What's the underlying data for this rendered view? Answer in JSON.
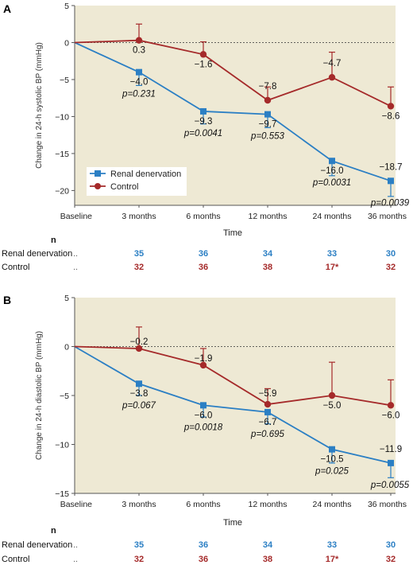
{
  "chart_data": [
    {
      "type": "line",
      "panel": "A",
      "ylabel": "Change in 24-h systolic BP (mmHg)",
      "xlabel": "Time",
      "ylim": [
        -22,
        5
      ],
      "yticks": [
        5,
        0,
        -5,
        -10,
        -15,
        -20
      ],
      "categories": [
        "Baseline",
        "3 months",
        "6 months",
        "12 months",
        "24 months",
        "36 months"
      ],
      "series": [
        {
          "name": "Renal denervation",
          "color": "#2b7fc4",
          "marker": "square",
          "values": [
            0,
            -4.0,
            -9.3,
            -9.7,
            -16.0,
            -18.7
          ],
          "err_low": [
            null,
            -5.8,
            -11.0,
            -11.5,
            -18.0,
            -20.8
          ],
          "value_labels": [
            "",
            "−4.0",
            "−9.3",
            "−9.7",
            "−16.0",
            "−18.7"
          ],
          "p_labels": [
            "",
            "p=0.231",
            "p=0.0041",
            "p=0.553",
            "p=0.0031",
            "p=0.0039"
          ]
        },
        {
          "name": "Control",
          "color": "#a52a2a",
          "marker": "circle",
          "values": [
            0,
            0.3,
            -1.6,
            -7.8,
            -4.7,
            -8.6
          ],
          "err_high": [
            null,
            2.5,
            0.1,
            -6.0,
            -1.3,
            -6.0
          ],
          "value_labels": [
            "",
            "0.3",
            "−1.6",
            "−7.8",
            "−4.7",
            "−8.6"
          ]
        }
      ],
      "n_table": {
        "header": "n",
        "rows": [
          {
            "label": "Renal denervation",
            "dots": "..",
            "color": "#2b7fc4",
            "values": [
              "35",
              "36",
              "34",
              "33",
              "30"
            ]
          },
          {
            "label": "Control",
            "dots": "..",
            "color": "#a52a2a",
            "values": [
              "32",
              "36",
              "38",
              "17*",
              "32"
            ]
          }
        ]
      }
    },
    {
      "type": "line",
      "panel": "B",
      "ylabel": "Change in 24-h diastolic BP (mmHg)",
      "xlabel": "Time",
      "ylim": [
        -15,
        5
      ],
      "yticks": [
        5,
        0,
        -5,
        -10,
        -15
      ],
      "categories": [
        "Baseline",
        "3 months",
        "6 months",
        "12 months",
        "24 months",
        "36 months"
      ],
      "series": [
        {
          "name": "Renal denervation",
          "color": "#2b7fc4",
          "marker": "square",
          "values": [
            0,
            -3.8,
            -6.0,
            -6.7,
            -10.5,
            -11.9
          ],
          "err_low": [
            null,
            -5.0,
            -7.2,
            -7.9,
            -11.9,
            -13.4
          ],
          "value_labels": [
            "",
            "−3.8",
            "−6.0",
            "−6.7",
            "−10.5",
            "−11.9"
          ],
          "p_labels": [
            "",
            "p=0.067",
            "p=0.0018",
            "p=0.695",
            "p=0.025",
            "p=0.0055"
          ]
        },
        {
          "name": "Control",
          "color": "#a52a2a",
          "marker": "circle",
          "values": [
            0,
            -0.2,
            -1.9,
            -5.9,
            -5.0,
            -6.0
          ],
          "err_high": [
            null,
            2.0,
            -0.2,
            -4.3,
            -1.6,
            -3.4
          ],
          "value_labels": [
            "",
            "−0.2",
            "−1.9",
            "−5.9",
            "−5.0",
            "−6.0"
          ]
        }
      ],
      "n_table": {
        "header": "n",
        "rows": [
          {
            "label": "Renal denervation",
            "dots": "..",
            "color": "#2b7fc4",
            "values": [
              "35",
              "36",
              "34",
              "33",
              "30"
            ]
          },
          {
            "label": "Control",
            "dots": "..",
            "color": "#a52a2a",
            "values": [
              "32",
              "36",
              "38",
              "17*",
              "32"
            ]
          }
        ]
      }
    }
  ],
  "colors": {
    "plot_background": "#eee9d4",
    "renal": "#2b7fc4",
    "control": "#a52a2a"
  }
}
